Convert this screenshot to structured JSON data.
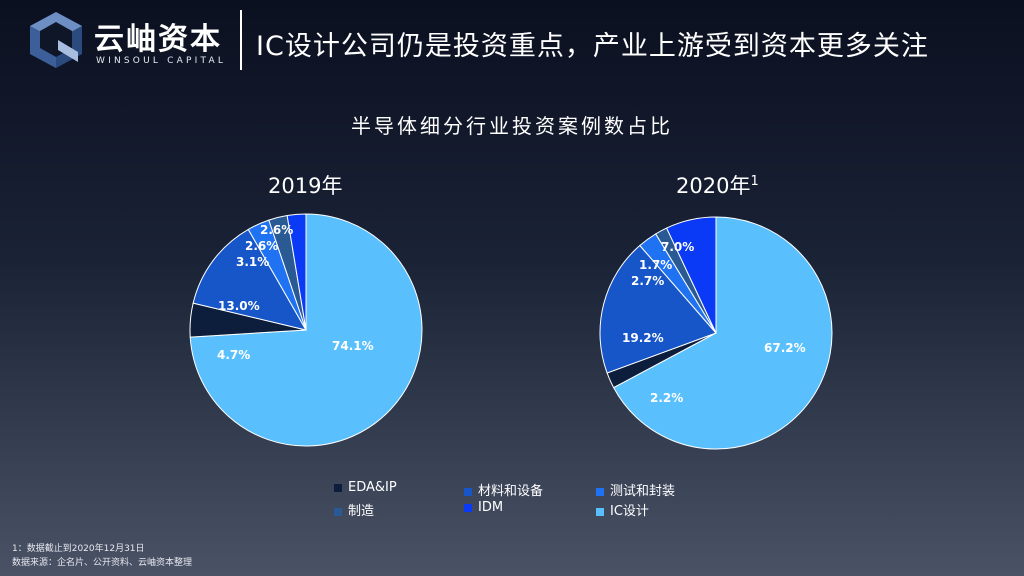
{
  "brand": {
    "name_cn": "云岫资本",
    "name_en": "WINSOUL CAPITAL",
    "logo_icon": "cube-logo-icon"
  },
  "header": {
    "headline": "IC设计公司仍是投资重点，产业上游受到资本更多关注"
  },
  "colors": {
    "EDA&IP": "#0d1e3d",
    "材料和设备": "#1656c8",
    "测试和封装": "#1f72f2",
    "制造": "#2a5a94",
    "IDM": "#0a3af5",
    "IC设计": "#5ac0fd"
  },
  "chart_data": {
    "type": "pie",
    "title": "半导体细分行业投资案例数占比",
    "categories": [
      "EDA&IP",
      "材料和设备",
      "测试和封装",
      "制造",
      "IDM",
      "IC设计"
    ],
    "legend_position": "bottom",
    "pies": [
      {
        "label": "2019年",
        "superscript": "",
        "slices": [
          {
            "category": "IC设计",
            "value": 74.1,
            "label": "74.1%"
          },
          {
            "category": "EDA&IP",
            "value": 4.7,
            "label": "4.7%"
          },
          {
            "category": "材料和设备",
            "value": 13.0,
            "label": "13.0%"
          },
          {
            "category": "测试和封装",
            "value": 3.1,
            "label": "3.1%"
          },
          {
            "category": "制造",
            "value": 2.6,
            "label": "2.6%"
          },
          {
            "category": "IDM",
            "value": 2.6,
            "label": "2.6%"
          }
        ]
      },
      {
        "label": "2020年",
        "superscript": "1",
        "slices": [
          {
            "category": "IC设计",
            "value": 67.2,
            "label": "67.2%"
          },
          {
            "category": "EDA&IP",
            "value": 2.2,
            "label": "2.2%"
          },
          {
            "category": "材料和设备",
            "value": 19.2,
            "label": "19.2%"
          },
          {
            "category": "测试和封装",
            "value": 2.7,
            "label": "2.7%"
          },
          {
            "category": "制造",
            "value": 1.7,
            "label": "1.7%"
          },
          {
            "category": "IDM",
            "value": 7.0,
            "label": "7.0%"
          }
        ]
      }
    ]
  },
  "footnotes": [
    "1：数据截止到2020年12月31日",
    "数据来源：企名片、公开资料、云岫资本整理"
  ]
}
